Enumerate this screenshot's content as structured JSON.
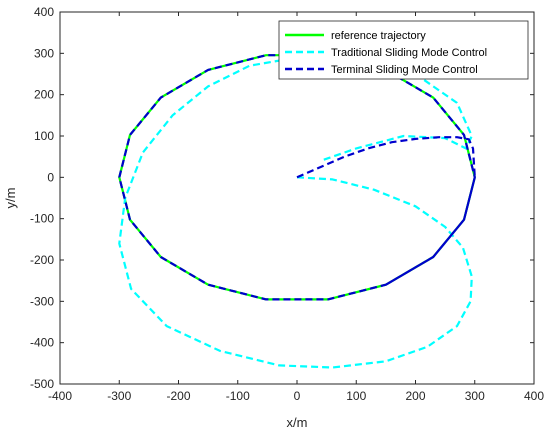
{
  "chart_data": {
    "type": "line",
    "title": "",
    "xlabel": "x/m",
    "ylabel": "y/m",
    "xlim": [
      -400,
      400
    ],
    "ylim": [
      -500,
      400
    ],
    "xticks": [
      -400,
      -300,
      -200,
      -100,
      0,
      100,
      200,
      300,
      400
    ],
    "yticks": [
      -500,
      -400,
      -300,
      -200,
      -100,
      0,
      100,
      200,
      300,
      400
    ],
    "xtick_labels": [
      "-400",
      "-300",
      "-200",
      "-100",
      "0",
      "100",
      "200",
      "300",
      "400"
    ],
    "ytick_labels": [
      "-500",
      "-400",
      "-300",
      "-200",
      "-100",
      "0",
      "100",
      "200",
      "300",
      "400"
    ],
    "grid": false,
    "legend_position": "top-right",
    "series": [
      {
        "name": "reference trajectory",
        "color": "#00ff00",
        "style": "solid",
        "x": [
          300,
          281.9,
          229.8,
          150,
          52.1,
          -52.1,
          -150,
          -229.8,
          -281.9,
          -300,
          -281.9,
          -229.8,
          -150,
          -52.1,
          52.1,
          150,
          229.8,
          281.9,
          300
        ],
        "y": [
          0,
          102.6,
          192.8,
          259.8,
          295.4,
          295.4,
          259.8,
          192.8,
          102.6,
          0,
          -102.6,
          -192.8,
          -259.8,
          -295.4,
          -295.4,
          -259.8,
          -192.8,
          -102.6,
          0
        ]
      },
      {
        "name": "Traditional Sliding Mode Control",
        "color": "#00ffff",
        "style": "dashed",
        "x": [
          0,
          60,
          130,
          200,
          250,
          280,
          295,
          293,
          270,
          220,
          150,
          60,
          -30,
          -130,
          -220,
          -280,
          -300,
          -290,
          -260,
          -210,
          -150,
          -80,
          0,
          100,
          200,
          270,
          295,
          285,
          250,
          180,
          100,
          40
        ],
        "y": [
          0,
          -5,
          -30,
          -70,
          -120,
          -170,
          -240,
          -300,
          -360,
          -410,
          -445,
          -460,
          -455,
          -420,
          -360,
          -270,
          -160,
          -50,
          60,
          150,
          220,
          270,
          290,
          290,
          250,
          180,
          100,
          70,
          95,
          100,
          70,
          40
        ]
      },
      {
        "name": "Terminal Sliding Mode Control",
        "color": "#0000cd",
        "style": "dashed",
        "x": [
          0,
          40,
          80,
          120,
          160,
          200,
          240,
          270,
          290,
          297,
          300,
          281.9,
          229.8,
          150,
          52.1,
          -52.1,
          -150,
          -229.8,
          -281.9,
          -300,
          -281.9,
          -229.8,
          -150,
          -52.1,
          52.1,
          150,
          229.8,
          281.9,
          300,
          281.9,
          229.8,
          150
        ],
        "y": [
          0,
          25,
          50,
          70,
          85,
          93,
          97,
          97,
          92,
          70,
          0,
          -102.6,
          -192.8,
          -259.8,
          -295.4,
          -295.4,
          -259.8,
          -192.8,
          -102.6,
          0,
          102.6,
          192.8,
          259.8,
          295.4,
          295.4,
          259.8,
          192.8,
          102.6,
          0,
          -102.6,
          -192.8,
          -259.8
        ]
      }
    ]
  }
}
